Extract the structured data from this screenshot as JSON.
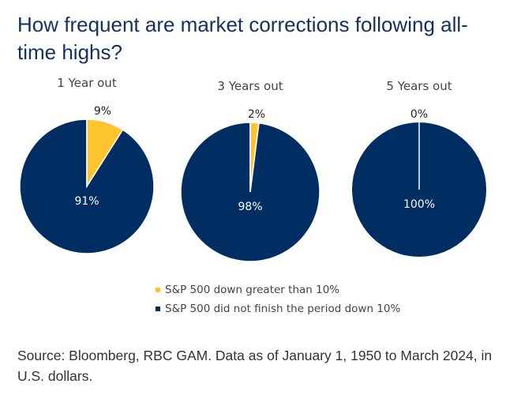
{
  "title": "How frequent are market corrections following all-time highs?",
  "source": "Source: Bloomberg, RBC GAM. Data as of January 1, 1950 to March 2024, in U.S. dollars.",
  "chart_data": [
    {
      "type": "pie",
      "title": "1 Year out",
      "labels": [
        "S&P 500 down greater than 10%",
        "S&P 500 did not finish the period down 10%"
      ],
      "values": [
        9,
        91
      ],
      "value_labels": [
        "9%",
        "91%"
      ]
    },
    {
      "type": "pie",
      "title": "3 Years out",
      "labels": [
        "S&P 500 down greater than 10%",
        "S&P 500 did not finish the period down 10%"
      ],
      "values": [
        2,
        98
      ],
      "value_labels": [
        "2%",
        "98%"
      ]
    },
    {
      "type": "pie",
      "title": "5 Years out",
      "labels": [
        "S&P 500 down greater than 10%",
        "S&P 500 did not finish the period down 10%"
      ],
      "values": [
        0,
        100
      ],
      "value_labels": [
        "0%",
        "100%"
      ]
    }
  ],
  "legend": [
    {
      "label": "S&P 500 down greater than 10%",
      "color": "#fec42d"
    },
    {
      "label": "S&P 500 did not finish the period down 10%",
      "color": "#002d62"
    }
  ]
}
